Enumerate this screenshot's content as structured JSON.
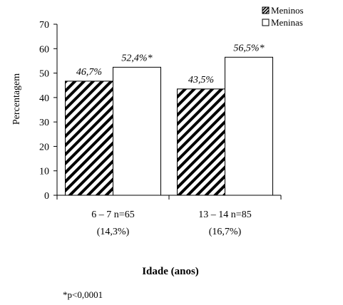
{
  "chart_data": {
    "type": "bar",
    "title": "",
    "xlabel": "Idade (anos)",
    "ylabel": "Percentagem",
    "ylim": [
      0,
      70
    ],
    "yticks": [
      0,
      10,
      20,
      30,
      40,
      50,
      60,
      70
    ],
    "categories": [
      {
        "line1": "6 – 7 n=65",
        "line2": "(14,3%)"
      },
      {
        "line1": "13 – 14 n=85",
        "line2": "(16,7%)"
      }
    ],
    "series": [
      {
        "name": "Meninos",
        "pattern": "diagonal-hatch",
        "values": [
          46.7,
          43.5
        ],
        "labels": [
          "46,7%",
          "43,5%"
        ]
      },
      {
        "name": "Meninas",
        "pattern": "white",
        "values": [
          52.4,
          56.5
        ],
        "labels": [
          "52,4%*",
          "56,5%*"
        ]
      }
    ],
    "legend_position": "top-right",
    "grid": false,
    "footnote": "*p<0,0001"
  }
}
